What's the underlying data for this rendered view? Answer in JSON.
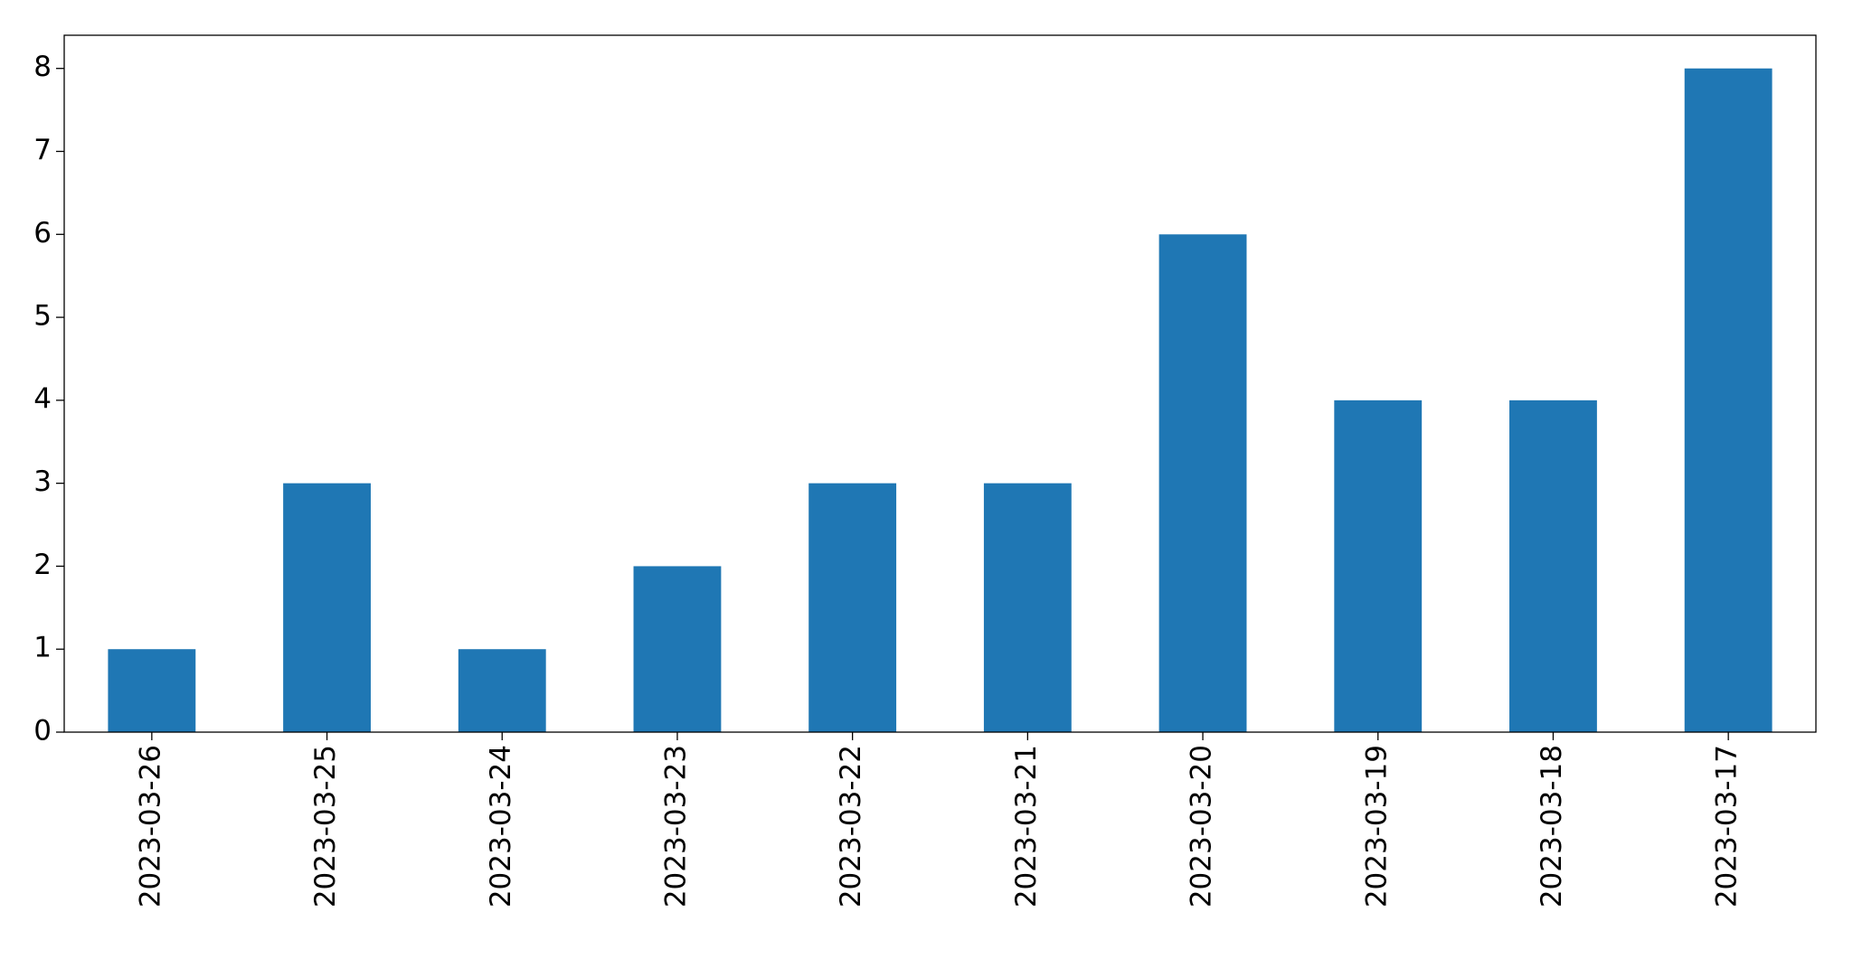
{
  "chart_data": {
    "type": "bar",
    "categories": [
      "2023-03-26",
      "2023-03-25",
      "2023-03-24",
      "2023-03-23",
      "2023-03-22",
      "2023-03-21",
      "2023-03-20",
      "2023-03-19",
      "2023-03-18",
      "2023-03-17"
    ],
    "values": [
      1,
      3,
      1,
      2,
      3,
      3,
      6,
      4,
      4,
      8
    ],
    "color": "#1f77b4",
    "ylim": [
      0,
      8.4
    ],
    "yticks": [
      0,
      1,
      2,
      3,
      4,
      5,
      6,
      7,
      8
    ],
    "grid": false
  }
}
